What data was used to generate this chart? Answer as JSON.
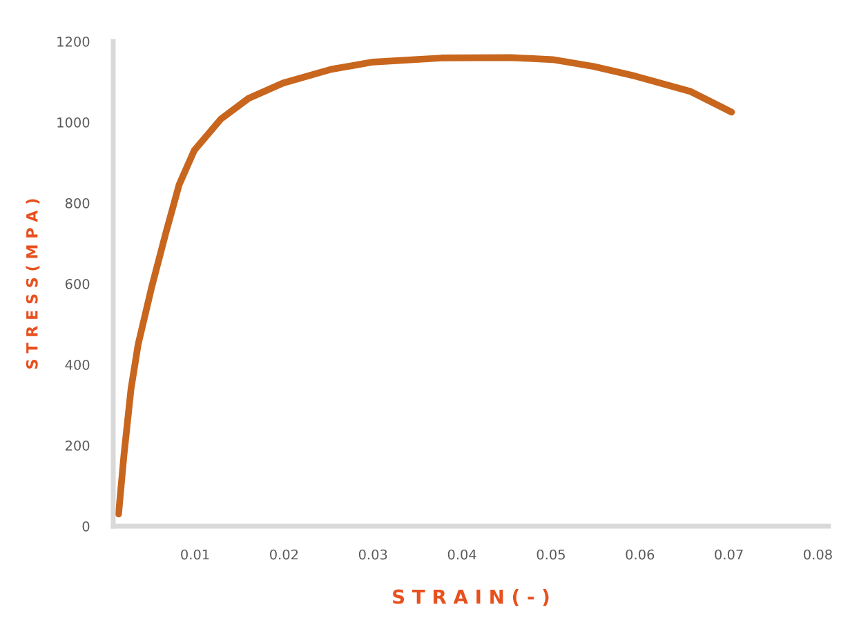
{
  "chart_data": {
    "type": "line",
    "xlabel": "S T R A I N ( - )",
    "ylabel": "S T R E S S ( M P A )",
    "x": [
      0.0014,
      0.002,
      0.0028,
      0.0036,
      0.0051,
      0.0067,
      0.0082,
      0.0099,
      0.0129,
      0.016,
      0.0199,
      0.0253,
      0.03,
      0.0377,
      0.0455,
      0.0502,
      0.0548,
      0.0595,
      0.0657,
      0.0703
    ],
    "series": [
      {
        "color": "#c8661e",
        "values": [
          30,
          175,
          340,
          450,
          590,
          725,
          845,
          930,
          1008,
          1059,
          1097,
          1131,
          1149,
          1159,
          1160,
          1155,
          1138,
          1114,
          1076,
          1025
        ]
      }
    ],
    "xlim": [
      0.0008,
      0.0812
    ],
    "ylim": [
      0,
      1200
    ],
    "xticks": [
      0.01,
      0.02,
      0.03,
      0.04,
      0.05,
      0.06,
      0.07,
      0.08
    ],
    "yticks": [
      0,
      200,
      400,
      600,
      800,
      1000,
      1200
    ],
    "grid": false,
    "marker": "none",
    "line_style": "solid"
  }
}
